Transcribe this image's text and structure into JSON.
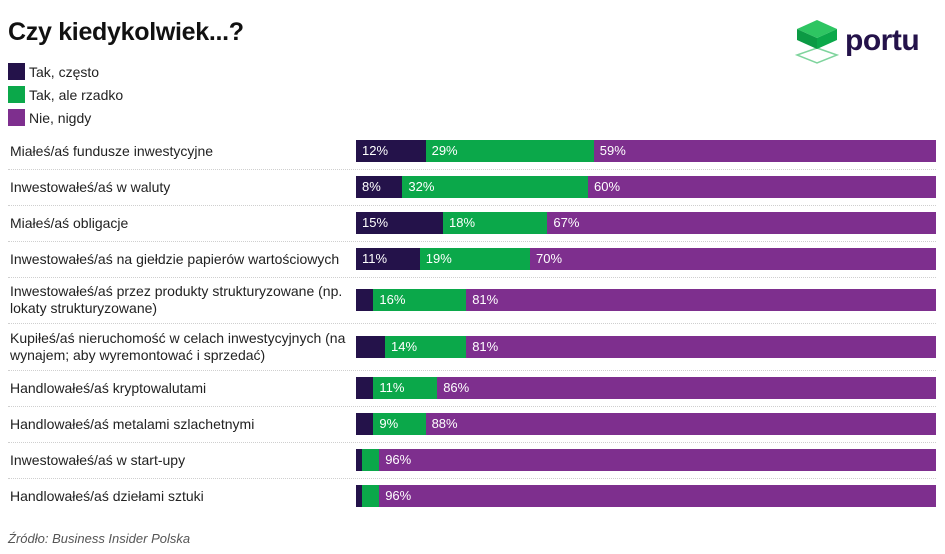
{
  "chart_data": {
    "type": "bar",
    "orientation": "horizontal",
    "stacked": true,
    "title": "Czy kiedykolwiek...?",
    "categories": [
      "Miałeś/aś fundusze inwestycyjne",
      "Inwestowałeś/aś w waluty",
      "Miałeś/aś obligacje",
      "Inwestowałeś/aś na giełdzie papierów wartościowych",
      "Inwestowałeś/aś przez produkty strukturyzowane (np. lokaty strukturyzowane)",
      "Kupiłeś/aś nieruchomość w celach inwestycyjnych (na wynajem; aby wyremontować i sprzedać)",
      "Handlowałeś/aś kryptowalutami",
      "Handlowałeś/aś metalami szlachetnymi",
      "Inwestowałeś/aś w start-upy",
      "Handlowałeś/aś dziełami sztuki"
    ],
    "series": [
      {
        "name": "Tak, często",
        "color": "#24124a",
        "values": [
          12,
          8,
          15,
          11,
          3,
          5,
          3,
          3,
          1,
          1
        ]
      },
      {
        "name": "Tak, ale rzadko",
        "color": "#0ba84a",
        "values": [
          29,
          32,
          18,
          19,
          16,
          14,
          11,
          9,
          3,
          3
        ]
      },
      {
        "name": "Nie, nigdy",
        "color": "#7e2f8e",
        "values": [
          59,
          60,
          67,
          70,
          81,
          81,
          86,
          88,
          96,
          96
        ]
      }
    ],
    "unit": "%",
    "xlim": [
      0,
      100
    ],
    "legend_position": "top-left",
    "grid": false
  },
  "source": "Źródło: Business Insider Polska",
  "logo": {
    "text": "portu",
    "color": "#24124a",
    "accent": "#0ba84a"
  }
}
